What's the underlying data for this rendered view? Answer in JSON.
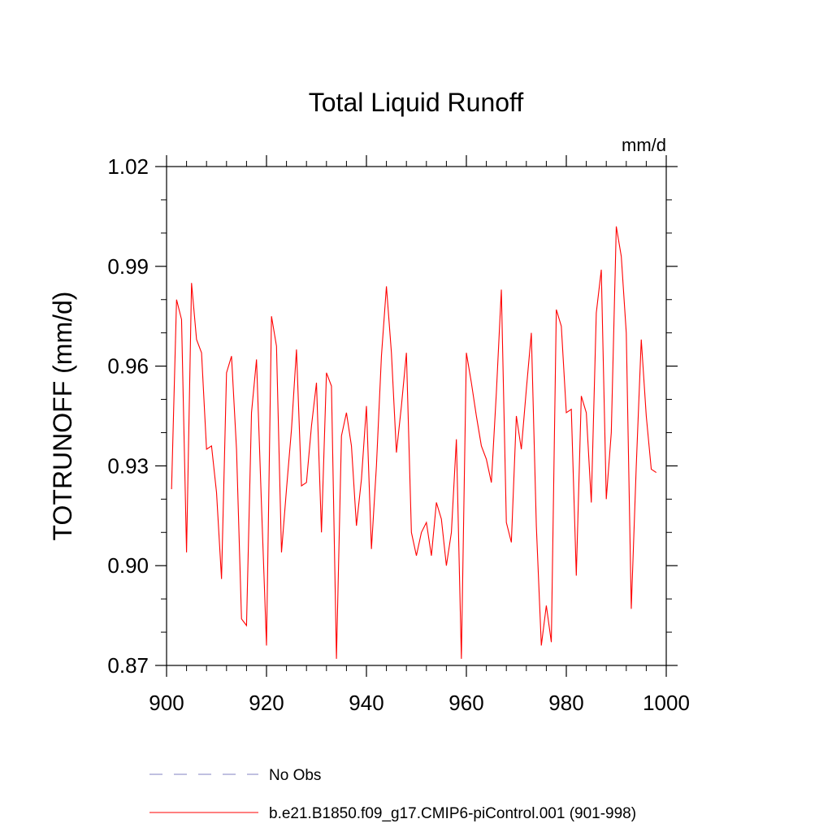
{
  "chart_data": {
    "type": "line",
    "title": "Total Liquid Runoff",
    "units_label": "mm/d",
    "ylabel": "TOTRUNOFF  (mm/d)",
    "xlabel": "",
    "xlim": [
      900,
      1000
    ],
    "ylim": [
      0.87,
      1.02
    ],
    "xticks": [
      900,
      920,
      940,
      960,
      980,
      1000
    ],
    "xtick_labels": [
      "900",
      "920",
      "940",
      "960",
      "980",
      "1000"
    ],
    "yticks": [
      0.87,
      0.9,
      0.93,
      0.96,
      0.99,
      1.02
    ],
    "ytick_labels": [
      "0.87",
      "0.90",
      "0.93",
      "0.96",
      "0.99",
      "1.02"
    ],
    "grid": false,
    "legend_position": "bottom",
    "colors": {
      "model": "#ff0000",
      "obs": "#8080c0",
      "axes": "#000000"
    },
    "series": [
      {
        "name": "No Obs",
        "style": "dashed",
        "values": []
      },
      {
        "name": "b.e21.B1850.f09_g17.CMIP6-piControl.001 (901-998)",
        "style": "solid",
        "x": [
          901,
          902,
          903,
          904,
          905,
          906,
          907,
          908,
          909,
          910,
          911,
          912,
          913,
          914,
          915,
          916,
          917,
          918,
          919,
          920,
          921,
          922,
          923,
          924,
          925,
          926,
          927,
          928,
          929,
          930,
          931,
          932,
          933,
          934,
          935,
          936,
          937,
          938,
          939,
          940,
          941,
          942,
          943,
          944,
          945,
          946,
          947,
          948,
          949,
          950,
          951,
          952,
          953,
          954,
          955,
          956,
          957,
          958,
          959,
          960,
          961,
          962,
          963,
          964,
          965,
          966,
          967,
          968,
          969,
          970,
          971,
          972,
          973,
          974,
          975,
          976,
          977,
          978,
          979,
          980,
          981,
          982,
          983,
          984,
          985,
          986,
          987,
          988,
          989,
          990,
          991,
          992,
          993,
          994,
          995,
          996,
          997,
          998
        ],
        "values": [
          0.923,
          0.98,
          0.974,
          0.904,
          0.985,
          0.968,
          0.964,
          0.935,
          0.936,
          0.922,
          0.896,
          0.958,
          0.963,
          0.935,
          0.884,
          0.882,
          0.946,
          0.962,
          0.918,
          0.876,
          0.975,
          0.966,
          0.904,
          0.923,
          0.941,
          0.965,
          0.924,
          0.925,
          0.942,
          0.955,
          0.91,
          0.958,
          0.954,
          0.872,
          0.939,
          0.946,
          0.936,
          0.912,
          0.926,
          0.948,
          0.905,
          0.93,
          0.963,
          0.984,
          0.964,
          0.934,
          0.948,
          0.964,
          0.91,
          0.903,
          0.91,
          0.913,
          0.903,
          0.919,
          0.914,
          0.9,
          0.91,
          0.938,
          0.872,
          0.964,
          0.955,
          0.945,
          0.936,
          0.932,
          0.925,
          0.952,
          0.983,
          0.913,
          0.907,
          0.945,
          0.935,
          0.953,
          0.97,
          0.912,
          0.876,
          0.888,
          0.877,
          0.977,
          0.972,
          0.946,
          0.947,
          0.897,
          0.951,
          0.946,
          0.919,
          0.976,
          0.989,
          0.92,
          0.94,
          1.002,
          0.993,
          0.97,
          0.887,
          0.93,
          0.968,
          0.945,
          0.929,
          0.928
        ]
      }
    ]
  }
}
